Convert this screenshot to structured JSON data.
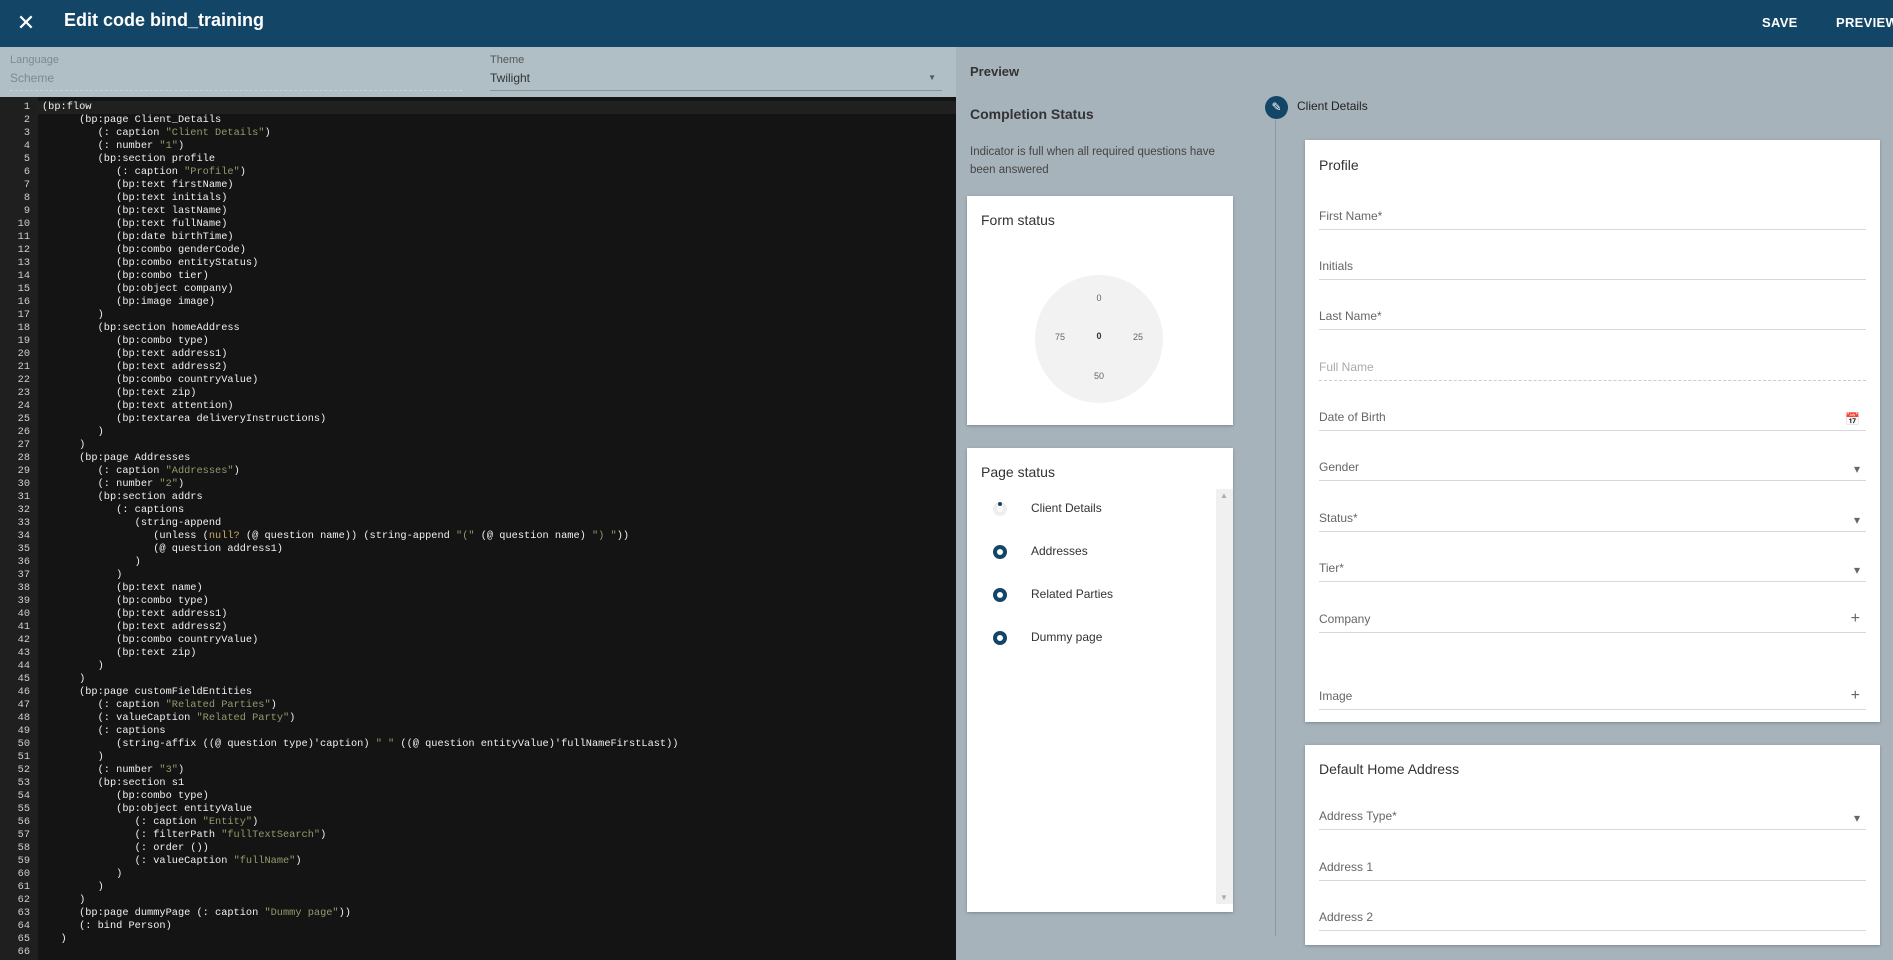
{
  "header": {
    "title": "Edit code bind_training",
    "save": "SAVE",
    "preview": "PREVIEW"
  },
  "settings": {
    "language_label": "Language",
    "language_value": "Scheme",
    "theme_label": "Theme",
    "theme_value": "Twilight"
  },
  "code": [
    "(bp:flow",
    "      (bp:page Client_Details",
    "         (: caption \"Client Details\")",
    "         (: number \"1\")",
    "         (bp:section profile",
    "            (: caption \"Profile\")",
    "            (bp:text firstName)",
    "            (bp:text initials)",
    "            (bp:text lastName)",
    "            (bp:text fullName)",
    "            (bp:date birthTime)",
    "            (bp:combo genderCode)",
    "            (bp:combo entityStatus)",
    "            (bp:combo tier)",
    "            (bp:object company)",
    "            (bp:image image)",
    "         )",
    "         (bp:section homeAddress",
    "            (bp:combo type)",
    "            (bp:text address1)",
    "            (bp:text address2)",
    "            (bp:combo countryValue)",
    "            (bp:text zip)",
    "            (bp:text attention)",
    "            (bp:textarea deliveryInstructions)",
    "         )",
    "      )",
    "      (bp:page Addresses",
    "         (: caption \"Addresses\")",
    "         (: number \"2\")",
    "         (bp:section addrs",
    "            (: captions",
    "               (string-append",
    "                  (unless (null? (@ question name)) (string-append \"(\" (@ question name) \") \"))",
    "                  (@ question address1)",
    "               )",
    "            )",
    "            (bp:text name)",
    "            (bp:combo type)",
    "            (bp:text address1)",
    "            (bp:text address2)",
    "            (bp:combo countryValue)",
    "            (bp:text zip)",
    "         )",
    "      )",
    "      (bp:page customFieldEntities",
    "         (: caption \"Related Parties\")",
    "         (: valueCaption \"Related Party\")",
    "         (: captions",
    "            (string-affix ((@ question type)'caption) \" \" ((@ question entityValue)'fullNameFirstLast))",
    "         )",
    "         (: number \"3\")",
    "         (bp:section s1",
    "            (bp:combo type)",
    "            (bp:object entityValue",
    "               (: caption \"Entity\")",
    "               (: filterPath \"fullTextSearch\")",
    "               (: order ())",
    "               (: valueCaption \"fullName\")",
    "            )",
    "         )",
    "      )",
    "      (bp:page dummyPage (: caption \"Dummy page\"))",
    "      (: bind Person)",
    "   )",
    ""
  ],
  "preview": {
    "title": "Preview",
    "completion_title": "Completion Status",
    "completion_desc": "Indicator is full when all required questions have been answered",
    "form_status": {
      "title": "Form status",
      "value": "0",
      "ticks": [
        "0",
        "25",
        "50",
        "75"
      ],
      "progress": 0
    },
    "page_status": {
      "title": "Page status",
      "items": [
        {
          "label": "Client Details",
          "state": "partial"
        },
        {
          "label": "Addresses",
          "state": "empty"
        },
        {
          "label": "Related Parties",
          "state": "empty"
        },
        {
          "label": "Dummy page",
          "state": "empty"
        }
      ]
    }
  },
  "form": {
    "step_label": "Client Details",
    "profile": {
      "title": "Profile",
      "fields": [
        "First Name*",
        "Initials",
        "Last Name*",
        "Full Name",
        "Date of Birth",
        "Gender",
        "Status*",
        "Tier*",
        "Company",
        "Image"
      ]
    },
    "home": {
      "title": "Default Home Address",
      "fields": [
        "Address Type*",
        "Address 1",
        "Address 2"
      ]
    }
  },
  "colors": {
    "header": "#134566",
    "accent": "#134566",
    "string": "#8f9d6a"
  }
}
